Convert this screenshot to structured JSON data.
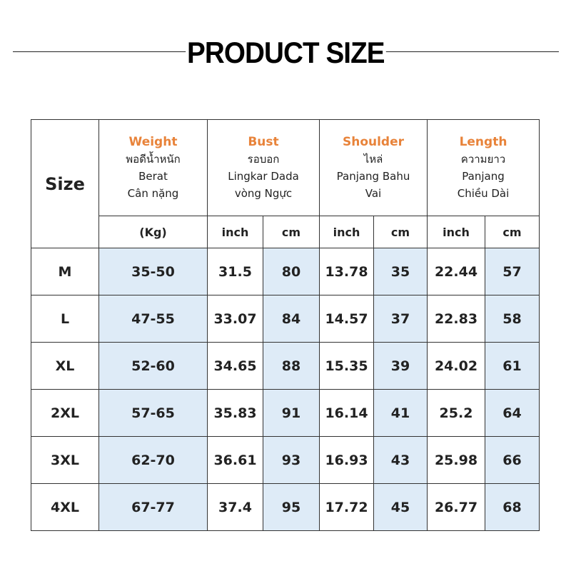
{
  "header": {
    "title": "PRODUCT SIZE"
  },
  "table": {
    "size_label": "Size",
    "groups": [
      {
        "title": "Weight",
        "lines": [
          "พอดีน้ำหนัก",
          "Berat",
          "Cân nặng"
        ]
      },
      {
        "title": "Bust",
        "lines": [
          "รอบอก",
          "Lingkar Dada",
          "vòng Ngực"
        ]
      },
      {
        "title": "Shoulder",
        "lines": [
          "ไหล่",
          "Panjang Bahu",
          "Vai"
        ]
      },
      {
        "title": "Length",
        "lines": [
          "ความยาว",
          "Panjang",
          "Chiều Dài"
        ]
      }
    ],
    "units": [
      "(Kg)",
      "inch",
      "cm",
      "inch",
      "cm",
      "inch",
      "cm"
    ],
    "rows": [
      [
        "M",
        "35-50",
        "31.5",
        "80",
        "13.78",
        "35",
        "22.44",
        "57"
      ],
      [
        "L",
        "47-55",
        "33.07",
        "84",
        "14.57",
        "37",
        "22.83",
        "58"
      ],
      [
        "XL",
        "52-60",
        "34.65",
        "88",
        "15.35",
        "39",
        "24.02",
        "61"
      ],
      [
        "2XL",
        "57-65",
        "35.83",
        "91",
        "16.14",
        "41",
        "25.2",
        "64"
      ],
      [
        "3XL",
        "62-70",
        "36.61",
        "93",
        "16.93",
        "43",
        "25.98",
        "66"
      ],
      [
        "4XL",
        "67-77",
        "37.4",
        "95",
        "17.72",
        "45",
        "26.77",
        "68"
      ]
    ]
  }
}
